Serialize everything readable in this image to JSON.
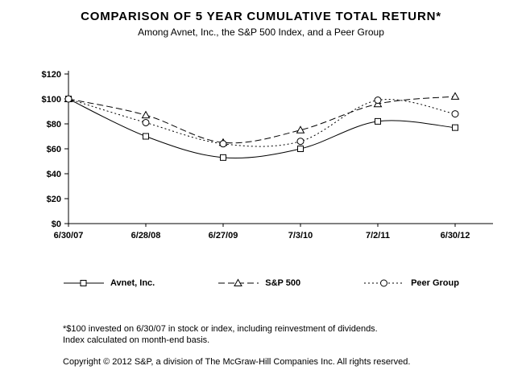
{
  "title": "COMPARISON OF 5 YEAR CUMULATIVE TOTAL RETURN*",
  "subtitle": "Among Avnet, Inc., the S&P 500 Index, and a Peer Group",
  "footnotes": [
    "*$100 invested on 6/30/07 in stock or index, including reinvestment of dividends.",
    "Index calculated on month-end basis."
  ],
  "copyright": "Copyright © 2012 S&P, a division of The McGraw-Hill Companies Inc. All rights reserved.",
  "chart_data": {
    "type": "line",
    "title": "COMPARISON OF 5 YEAR CUMULATIVE TOTAL RETURN",
    "categories": [
      "6/30/07",
      "6/28/08",
      "6/27/09",
      "7/3/10",
      "7/2/11",
      "6/30/12"
    ],
    "series": [
      {
        "name": "Avnet, Inc.",
        "marker": "square",
        "dash": "solid",
        "color": "#000000",
        "values": [
          100,
          70,
          53,
          60,
          82,
          77
        ]
      },
      {
        "name": "S&P 500",
        "marker": "triangle",
        "dash": "dashed",
        "color": "#000000",
        "values": [
          100,
          87,
          65,
          75,
          96,
          102
        ]
      },
      {
        "name": "Peer Group",
        "marker": "circle",
        "dash": "dotted",
        "color": "#000000",
        "values": [
          100,
          81,
          64,
          66,
          99,
          88
        ]
      }
    ],
    "ylim": [
      0,
      120
    ],
    "ytick_step": 20,
    "ytick_labels": [
      "$0",
      "$20",
      "$40",
      "$60",
      "$80",
      "$100",
      "$120"
    ],
    "xlabel": "",
    "ylabel": "",
    "grid": false,
    "legend_position": "bottom"
  }
}
